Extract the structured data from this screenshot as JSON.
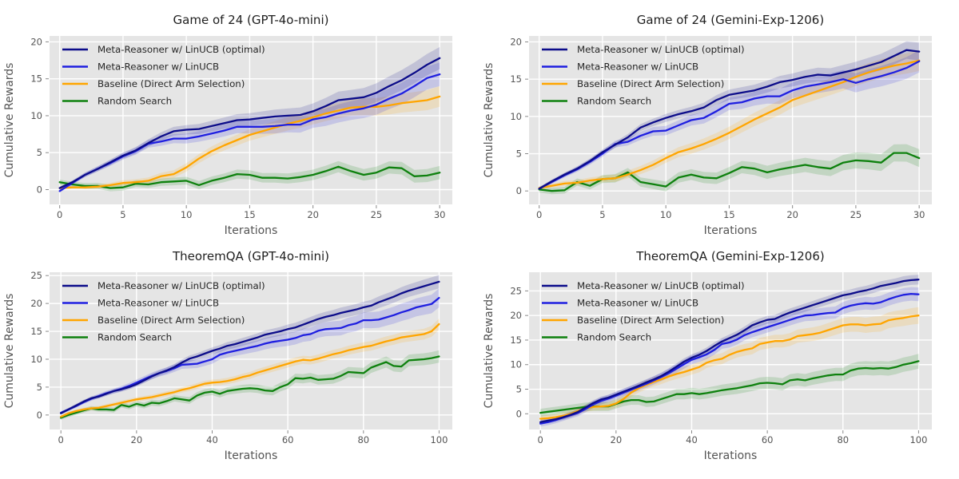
{
  "figure": {
    "background": "#ffffff",
    "plot_background": "#e5e5e5",
    "grid_color": "#ffffff",
    "tick_color": "#8a8a8a",
    "tick_label_color": "#555555",
    "axis_label_color": "#555555",
    "title_color": "#1f1f1f",
    "legend_text_color": "#262626",
    "band_opacity": 0.16,
    "series_colors": {
      "navy": "#0c0c8a",
      "blue": "#1f1fe0",
      "orange": "#ffa500",
      "green": "#0e810e"
    }
  },
  "chart_data": [
    {
      "id": "game-of-24-gpt-4o-mini",
      "type": "line",
      "title": "Game of 24 (GPT-4o-mini)",
      "xlabel": "Iterations",
      "ylabel": "Cumulative Rewards",
      "grid": true,
      "legend_position": "upper left",
      "xlim": [
        -0.8,
        31.0
      ],
      "ylim": [
        -2.0,
        20.8
      ],
      "xticks": [
        0,
        5,
        10,
        15,
        20,
        25,
        30
      ],
      "yticks": [
        0,
        5,
        10,
        15,
        20
      ],
      "x": [
        0,
        1,
        2,
        3,
        4,
        5,
        6,
        7,
        8,
        9,
        10,
        11,
        12,
        13,
        14,
        15,
        16,
        17,
        18,
        19,
        20,
        21,
        22,
        23,
        24,
        25,
        26,
        27,
        28,
        29,
        30
      ],
      "series": [
        {
          "name": "Meta-Reasoner w/ LinUCB (optimal)",
          "color": "#0c0c8a",
          "band_start": 0.2,
          "band_end": 1.5,
          "values": [
            0.2,
            1.0,
            2.0,
            2.8,
            3.7,
            4.6,
            5.3,
            6.3,
            7.2,
            7.9,
            8.1,
            8.2,
            8.6,
            9.0,
            9.4,
            9.5,
            9.7,
            9.9,
            10.0,
            10.1,
            10.6,
            11.3,
            12.1,
            12.3,
            12.5,
            13.1,
            14.0,
            14.8,
            15.8,
            16.9,
            17.8
          ]
        },
        {
          "name": "Meta-Reasoner w/ LinUCB",
          "color": "#1f1fe0",
          "band_start": 0.2,
          "band_end": 1.6,
          "values": [
            -0.2,
            0.9,
            2.0,
            2.8,
            3.6,
            4.5,
            5.2,
            6.2,
            6.5,
            6.9,
            6.9,
            7.2,
            7.6,
            8.0,
            8.5,
            8.5,
            8.5,
            8.6,
            8.8,
            8.8,
            9.5,
            9.8,
            10.3,
            10.7,
            11.0,
            11.5,
            12.3,
            13.0,
            14.0,
            15.1,
            15.6
          ]
        },
        {
          "name": "Baseline (Direct Arm Selection)",
          "color": "#ffa500",
          "band_start": 0.15,
          "band_end": 1.4,
          "values": [
            0.2,
            0.3,
            0.3,
            0.4,
            0.6,
            0.9,
            1.0,
            1.2,
            1.8,
            2.1,
            3.0,
            4.2,
            5.2,
            6.0,
            6.7,
            7.4,
            7.9,
            8.4,
            8.9,
            9.3,
            9.8,
            10.3,
            10.7,
            11.1,
            11.2,
            11.2,
            11.4,
            11.7,
            11.9,
            12.1,
            12.6
          ]
        },
        {
          "name": "Random Search",
          "color": "#0e810e",
          "band_start": 0.35,
          "band_end": 0.9,
          "values": [
            1.0,
            0.7,
            0.5,
            0.5,
            0.2,
            0.3,
            0.8,
            0.7,
            1.0,
            1.1,
            1.2,
            0.6,
            1.2,
            1.6,
            2.1,
            2.0,
            1.6,
            1.6,
            1.5,
            1.7,
            2.0,
            2.5,
            3.1,
            2.5,
            2.0,
            2.3,
            3.0,
            2.9,
            1.8,
            1.9,
            2.3
          ]
        }
      ]
    },
    {
      "id": "game-of-24-gemini-exp-1206",
      "type": "line",
      "title": "Game of 24 (Gemini-Exp-1206)",
      "xlabel": "Iterations",
      "ylabel": "Cumulative Rewards",
      "grid": true,
      "legend_position": "upper left",
      "xlim": [
        -0.8,
        31.0
      ],
      "ylim": [
        -1.8,
        20.8
      ],
      "xticks": [
        0,
        5,
        10,
        15,
        20,
        25,
        30
      ],
      "yticks": [
        0,
        5,
        10,
        15,
        20
      ],
      "x": [
        0,
        1,
        2,
        3,
        4,
        5,
        6,
        7,
        8,
        9,
        10,
        11,
        12,
        13,
        14,
        15,
        16,
        17,
        18,
        19,
        20,
        21,
        22,
        23,
        24,
        25,
        26,
        27,
        28,
        29,
        30
      ],
      "series": [
        {
          "name": "Meta-Reasoner w/ LinUCB (optimal)",
          "color": "#0c0c8a",
          "band_start": 0.2,
          "band_end": 1.2,
          "values": [
            0.3,
            1.3,
            2.2,
            3.0,
            4.0,
            5.2,
            6.2,
            7.2,
            8.5,
            9.2,
            9.8,
            10.3,
            10.7,
            11.2,
            12.2,
            12.9,
            13.2,
            13.5,
            14.0,
            14.6,
            14.9,
            15.3,
            15.6,
            15.5,
            15.9,
            16.3,
            16.8,
            17.3,
            18.1,
            18.9,
            18.7
          ]
        },
        {
          "name": "Meta-Reasoner w/ LinUCB",
          "color": "#1f1fe0",
          "band_start": 0.2,
          "band_end": 1.5,
          "values": [
            0.3,
            1.2,
            2.1,
            2.9,
            3.9,
            5.0,
            6.3,
            6.6,
            7.4,
            8.0,
            8.1,
            8.8,
            9.5,
            9.8,
            10.7,
            11.7,
            11.9,
            12.4,
            12.7,
            12.7,
            13.5,
            14.0,
            14.3,
            14.6,
            15.0,
            14.5,
            15.0,
            15.4,
            15.9,
            16.5,
            17.4
          ]
        },
        {
          "name": "Baseline (Direct Arm Selection)",
          "color": "#ffa500",
          "band_start": 0.25,
          "band_end": 1.4,
          "values": [
            0.4,
            0.7,
            1.0,
            1.1,
            1.4,
            1.6,
            1.7,
            2.2,
            2.8,
            3.5,
            4.4,
            5.2,
            5.7,
            6.3,
            7.0,
            7.8,
            8.7,
            9.6,
            10.4,
            11.2,
            12.2,
            12.8,
            13.4,
            14.0,
            14.6,
            15.3,
            15.9,
            16.4,
            16.8,
            17.1,
            17.5
          ]
        },
        {
          "name": "Random Search",
          "color": "#0e810e",
          "band_start": 0.4,
          "band_end": 1.2,
          "values": [
            0.2,
            0.0,
            0.1,
            1.2,
            0.7,
            1.6,
            1.7,
            2.5,
            1.2,
            0.9,
            0.6,
            1.8,
            2.2,
            1.8,
            1.7,
            2.4,
            3.2,
            3.0,
            2.5,
            2.9,
            3.2,
            3.5,
            3.2,
            3.0,
            3.8,
            4.1,
            4.0,
            3.8,
            5.1,
            5.1,
            4.4
          ]
        }
      ]
    },
    {
      "id": "theoremqa-gpt-4o-mini",
      "type": "line",
      "title": "TheoremQA (GPT-4o-mini)",
      "xlabel": "Iterations",
      "ylabel": "Cumulative Rewards",
      "grid": true,
      "legend_position": "upper left",
      "xlim": [
        -3.0,
        103.5
      ],
      "ylim": [
        -2.6,
        25.6
      ],
      "xticks": [
        0,
        20,
        40,
        60,
        80,
        100
      ],
      "yticks": [
        0,
        5,
        10,
        15,
        20,
        25
      ],
      "x": [
        0,
        2,
        4,
        6,
        8,
        10,
        12,
        14,
        16,
        18,
        20,
        22,
        24,
        26,
        28,
        30,
        32,
        34,
        36,
        38,
        40,
        42,
        44,
        46,
        48,
        50,
        52,
        54,
        56,
        58,
        60,
        62,
        64,
        66,
        68,
        70,
        72,
        74,
        76,
        78,
        80,
        82,
        84,
        86,
        88,
        90,
        92,
        94,
        96,
        98,
        100
      ],
      "series": [
        {
          "name": "Meta-Reasoner w/ LinUCB (optimal)",
          "color": "#0c0c8a",
          "band_start": 0.25,
          "band_end": 1.2,
          "values": [
            0.3,
            1.0,
            1.7,
            2.4,
            3.0,
            3.3,
            3.8,
            4.3,
            4.6,
            5.0,
            5.5,
            6.2,
            6.9,
            7.5,
            8.0,
            8.6,
            9.4,
            10.1,
            10.5,
            11.0,
            11.5,
            11.9,
            12.4,
            12.7,
            13.1,
            13.5,
            13.9,
            14.4,
            14.7,
            15.0,
            15.4,
            15.7,
            16.2,
            16.7,
            17.2,
            17.6,
            17.9,
            18.3,
            18.6,
            18.9,
            19.3,
            19.6,
            20.2,
            20.7,
            21.2,
            21.8,
            22.3,
            22.7,
            23.1,
            23.5,
            23.9
          ]
        },
        {
          "name": "Meta-Reasoner w/ LinUCB",
          "color": "#1f1fe0",
          "band_start": 0.25,
          "band_end": 1.7,
          "values": [
            0.4,
            1.0,
            1.6,
            2.3,
            2.9,
            3.4,
            3.9,
            4.3,
            4.7,
            5.2,
            5.8,
            6.4,
            7.0,
            7.5,
            7.9,
            8.4,
            9.0,
            9.1,
            9.2,
            9.6,
            10.0,
            10.8,
            11.2,
            11.5,
            11.8,
            12.1,
            12.4,
            12.8,
            13.1,
            13.3,
            13.5,
            13.8,
            14.3,
            14.5,
            15.1,
            15.4,
            15.5,
            15.6,
            16.1,
            16.4,
            17.0,
            17.0,
            17.1,
            17.5,
            17.9,
            18.4,
            18.8,
            19.3,
            19.6,
            19.9,
            21.0
          ]
        },
        {
          "name": "Baseline (Direct Arm Selection)",
          "color": "#ffa500",
          "band_start": 0.25,
          "band_end": 1.0,
          "values": [
            -0.3,
            0.3,
            0.7,
            1.0,
            1.2,
            1.3,
            1.6,
            1.9,
            2.2,
            2.5,
            2.8,
            3.0,
            3.2,
            3.5,
            3.8,
            4.1,
            4.5,
            4.8,
            5.2,
            5.6,
            5.8,
            5.9,
            6.1,
            6.4,
            6.8,
            7.1,
            7.6,
            8.0,
            8.4,
            8.8,
            9.2,
            9.6,
            9.9,
            9.8,
            10.1,
            10.5,
            10.9,
            11.2,
            11.6,
            11.9,
            12.2,
            12.4,
            12.8,
            13.2,
            13.5,
            13.9,
            14.1,
            14.3,
            14.5,
            15.0,
            16.3
          ]
        },
        {
          "name": "Random Search",
          "color": "#0e810e",
          "band_start": 0.35,
          "band_end": 1.1,
          "values": [
            -0.5,
            0.0,
            0.4,
            0.8,
            1.2,
            1.0,
            1.0,
            0.9,
            1.8,
            1.5,
            2.0,
            1.7,
            2.2,
            2.1,
            2.5,
            3.0,
            2.8,
            2.6,
            3.5,
            4.0,
            4.2,
            3.8,
            4.3,
            4.5,
            4.7,
            4.8,
            4.7,
            4.4,
            4.3,
            5.0,
            5.5,
            6.6,
            6.5,
            6.7,
            6.3,
            6.4,
            6.5,
            7.0,
            7.7,
            7.6,
            7.5,
            8.5,
            9.0,
            9.5,
            8.8,
            8.7,
            9.8,
            9.9,
            10.0,
            10.2,
            10.5
          ]
        }
      ]
    },
    {
      "id": "theoremqa-gemini-exp-1206",
      "type": "line",
      "title": "TheoremQA (Gemini-Exp-1206)",
      "xlabel": "Iterations",
      "ylabel": "Cumulative Rewards",
      "grid": true,
      "legend_position": "upper left",
      "xlim": [
        -3.0,
        103.5
      ],
      "ylim": [
        -3.2,
        28.8
      ],
      "xticks": [
        0,
        20,
        40,
        60,
        80,
        100
      ],
      "yticks": [
        0,
        5,
        10,
        15,
        20,
        25
      ],
      "x": [
        0,
        2,
        4,
        6,
        8,
        10,
        12,
        14,
        16,
        18,
        20,
        22,
        24,
        26,
        28,
        30,
        32,
        34,
        36,
        38,
        40,
        42,
        44,
        46,
        48,
        50,
        52,
        54,
        56,
        58,
        60,
        62,
        64,
        66,
        68,
        70,
        72,
        74,
        76,
        78,
        80,
        82,
        84,
        86,
        88,
        90,
        92,
        94,
        96,
        98,
        100
      ],
      "series": [
        {
          "name": "Meta-Reasoner w/ LinUCB (optimal)",
          "color": "#0c0c8a",
          "band_start": 0.5,
          "band_end": 1.0,
          "values": [
            -1.7,
            -1.4,
            -1.1,
            -0.7,
            -0.2,
            0.4,
            1.3,
            2.2,
            2.9,
            3.3,
            3.9,
            4.5,
            5.1,
            5.7,
            6.4,
            7.0,
            7.7,
            8.6,
            9.6,
            10.6,
            11.4,
            12.0,
            12.8,
            13.8,
            14.7,
            15.4,
            16.1,
            17.0,
            18.0,
            18.6,
            19.1,
            19.3,
            20.0,
            20.6,
            21.1,
            21.6,
            22.1,
            22.6,
            23.1,
            23.6,
            24.1,
            24.4,
            24.8,
            25.1,
            25.5,
            26.0,
            26.3,
            26.6,
            27.0,
            27.2,
            27.3
          ]
        },
        {
          "name": "Meta-Reasoner w/ LinUCB",
          "color": "#1f1fe0",
          "band_start": 0.6,
          "band_end": 1.4,
          "values": [
            -2.0,
            -1.7,
            -1.3,
            -0.8,
            -0.3,
            0.2,
            1.0,
            1.9,
            2.6,
            3.1,
            3.7,
            4.3,
            4.9,
            5.5,
            6.1,
            6.8,
            7.5,
            8.3,
            9.2,
            10.1,
            11.0,
            11.5,
            12.1,
            13.0,
            14.2,
            14.5,
            15.1,
            16.0,
            16.6,
            17.1,
            17.6,
            18.1,
            18.6,
            19.1,
            19.6,
            20.0,
            20.1,
            20.3,
            20.5,
            20.6,
            21.5,
            22.0,
            22.3,
            22.5,
            22.4,
            22.7,
            23.3,
            23.8,
            24.2,
            24.4,
            24.3
          ]
        },
        {
          "name": "Baseline (Direct Arm Selection)",
          "color": "#ffa500",
          "band_start": 0.6,
          "band_end": 1.7,
          "values": [
            -1.0,
            -0.9,
            -0.7,
            -0.4,
            0.0,
            0.6,
            1.1,
            1.4,
            1.5,
            1.6,
            2.1,
            3.0,
            4.3,
            5.2,
            5.9,
            6.5,
            7.0,
            7.6,
            8.1,
            8.5,
            9.0,
            9.5,
            10.4,
            10.9,
            11.2,
            12.0,
            12.6,
            13.0,
            13.3,
            14.2,
            14.5,
            14.8,
            14.8,
            15.1,
            15.8,
            16.0,
            16.2,
            16.5,
            17.0,
            17.5,
            18.0,
            18.2,
            18.2,
            18.0,
            18.2,
            18.3,
            19.0,
            19.3,
            19.5,
            19.8,
            20.0
          ]
        },
        {
          "name": "Random Search",
          "color": "#0e810e",
          "band_start": 0.8,
          "band_end": 1.5,
          "values": [
            0.2,
            0.4,
            0.6,
            0.8,
            1.0,
            1.2,
            1.4,
            1.5,
            1.5,
            1.5,
            2.0,
            2.5,
            2.8,
            2.8,
            2.4,
            2.5,
            3.0,
            3.5,
            4.0,
            4.0,
            4.2,
            4.0,
            4.2,
            4.5,
            4.8,
            5.0,
            5.2,
            5.5,
            5.8,
            6.2,
            6.3,
            6.2,
            6.0,
            6.8,
            7.0,
            6.8,
            7.2,
            7.5,
            7.8,
            8.0,
            8.0,
            8.8,
            9.2,
            9.3,
            9.2,
            9.3,
            9.2,
            9.5,
            10.0,
            10.3,
            10.7
          ]
        }
      ]
    }
  ]
}
